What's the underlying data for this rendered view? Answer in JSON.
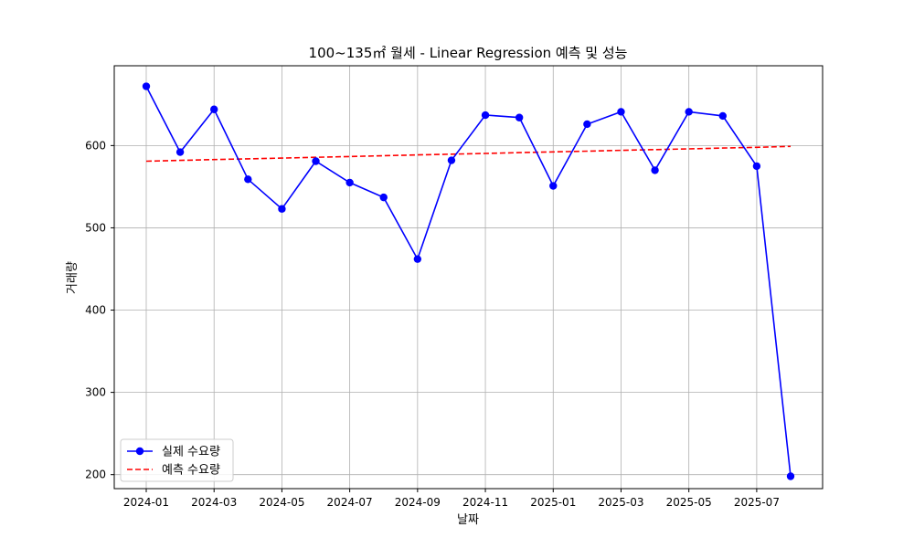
{
  "chart_data": {
    "type": "line",
    "title": "100~135㎡ 월세 - Linear Regression 예측 및 성능",
    "xlabel": "날짜",
    "ylabel": "거래량",
    "x": [
      "2024-01",
      "2024-02",
      "2024-03",
      "2024-04",
      "2024-05",
      "2024-06",
      "2024-07",
      "2024-08",
      "2024-09",
      "2024-10",
      "2024-11",
      "2024-12",
      "2025-01",
      "2025-02",
      "2025-03",
      "2025-04",
      "2025-05",
      "2025-06",
      "2025-07",
      "2025-08"
    ],
    "x_ticks": [
      "2024-01",
      "2024-03",
      "2024-05",
      "2024-07",
      "2024-09",
      "2024-11",
      "2025-01",
      "2025-03",
      "2025-05",
      "2025-07"
    ],
    "y_ticks": [
      200,
      300,
      400,
      500,
      600
    ],
    "ylim": [
      183,
      697
    ],
    "grid": true,
    "legend_position": "lower-left",
    "series": [
      {
        "name": "실제 수요량",
        "color": "#0000ff",
        "style": "solid",
        "marker": "circle",
        "values": [
          672,
          592,
          644,
          559,
          523,
          581,
          555,
          537,
          462,
          582,
          637,
          634,
          551,
          626,
          641,
          570,
          641,
          636,
          575,
          198
        ]
      },
      {
        "name": "예측 수요량",
        "color": "#ff0000",
        "style": "dashed",
        "marker": "none",
        "values": [
          581,
          582.0,
          583.0,
          583.9,
          584.8,
          585.8,
          586.7,
          587.6,
          588.6,
          589.5,
          590.4,
          591.4,
          592.3,
          593.2,
          594.2,
          595.1,
          596.0,
          597.0,
          597.9,
          599
        ]
      }
    ]
  }
}
